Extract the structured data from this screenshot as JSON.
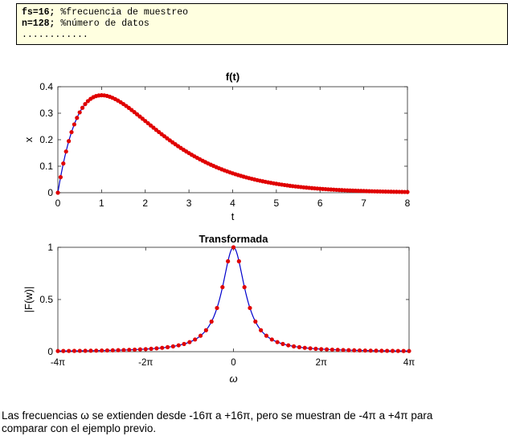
{
  "code": {
    "lines": [
      {
        "kw": "fs=16;",
        "comment": " %frecuencia de muestreo"
      },
      {
        "kw": "n=128;",
        "comment": " %número de datos"
      },
      {
        "kw": "",
        "comment": "............"
      }
    ]
  },
  "chart_data": [
    {
      "type": "scatter",
      "title": "f(t)",
      "xlabel": "t",
      "ylabel": "x",
      "xlim": [
        0,
        8
      ],
      "ylim": [
        0,
        0.4
      ],
      "x_ticks": [
        "0",
        "1",
        "2",
        "3",
        "4",
        "5",
        "6",
        "7",
        "8"
      ],
      "y_ticks": [
        "0",
        "0.1",
        "0.2",
        "0.3",
        "0.4"
      ],
      "function": "t*exp(-t)",
      "sample_step": 0.0625,
      "series": [
        {
          "values": "x = t·e^(-t), t = 0 … 8",
          "color": "#0000cc"
        },
        {
          "values": "samples at t = 0, 1/16, 2/16, … 8",
          "color": "#e00000"
        }
      ]
    },
    {
      "type": "scatter",
      "title": "Transformada",
      "xlabel": "ω",
      "ylabel": "|F(w)|",
      "xlim_rad": [
        -12.566,
        12.566
      ],
      "ylim": [
        0,
        1
      ],
      "x_ticks": [
        "-4π",
        "-2π",
        "0",
        "2π",
        "4π"
      ],
      "y_ticks": [
        "0",
        "0.5",
        "1"
      ],
      "function": "1/(1+w^2)",
      "sample_step": 0.3927,
      "series": [
        {
          "values": "|F(w)| = 1/(1+w²), w = -4π … 4π",
          "color": "#0000cc"
        },
        {
          "values": "samples every π/8",
          "color": "#e00000"
        }
      ]
    }
  ],
  "caption": {
    "line1": "Las frecuencias ω se extienden desde -16π a +16π, pero se muestran de -4π a +4π para",
    "line2": "comparar con el ejemplo previo."
  }
}
